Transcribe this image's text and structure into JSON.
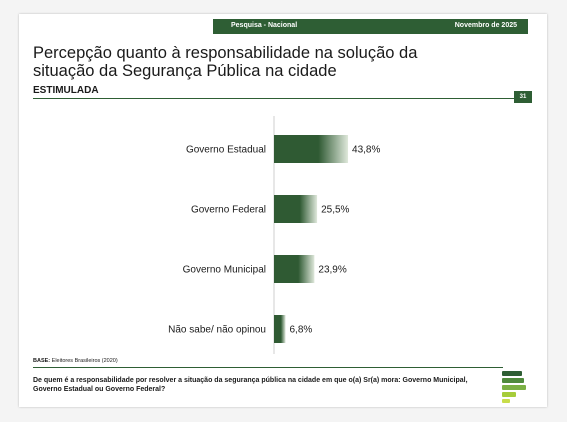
{
  "header": {
    "survey_label": "Pesquisa - Nacional",
    "date_label": "Novembro de 2025"
  },
  "title": "Percepção quanto à responsabilidade na solução da situação da Segurança Pública na cidade",
  "subtitle": "ESTIMULADA",
  "page_number": "31",
  "base": {
    "label": "BASE:",
    "text": "Eleitores Brasileiros (2020)"
  },
  "question": "De quem é a responsabilidade por resolver a situação da segurança pública na cidade em que o(a) Sr(a) mora: Governo Municipal, Governo Estadual ou Governo Federal?",
  "colors": {
    "accent": "#2e5e34",
    "bar_dark": "#2f5a33",
    "bar_light": "#dfe8db"
  },
  "logo_icon": "institute-logo-icon",
  "chart_data": {
    "type": "bar",
    "orientation": "horizontal",
    "categories": [
      "Governo Estadual",
      "Governo Federal",
      "Governo Municipal",
      "Não sabe/ não opinou"
    ],
    "values": [
      43.8,
      25.5,
      23.9,
      6.8
    ],
    "value_labels": [
      "43,8%",
      "25,5%",
      "23,9%",
      "6,8%"
    ],
    "unit": "%",
    "xlim": [
      0,
      100
    ],
    "grid": false
  }
}
